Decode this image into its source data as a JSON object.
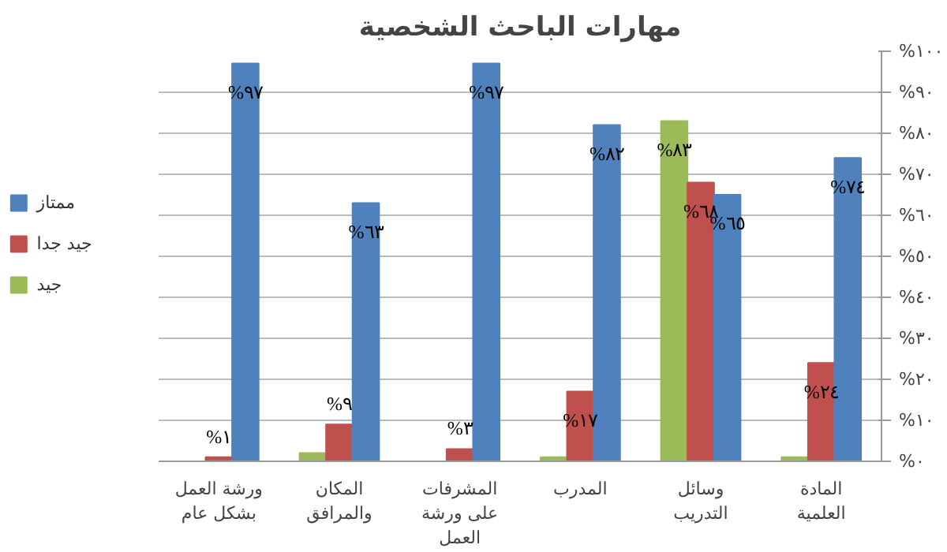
{
  "chart_data": {
    "type": "bar",
    "title": "مهارات الباحث الشخصية",
    "categories": [
      "ورشة العمل بشكل عام",
      "المكان والمرافق",
      "المشرفات على ورشة العمل",
      "المدرب",
      "وسائل التدريب",
      "المادة العلمية"
    ],
    "series": [
      {
        "name": "جيد",
        "color": "#9bbb59",
        "values": [
          0,
          2,
          0,
          1,
          83,
          1
        ],
        "value_labels": [
          null,
          null,
          null,
          null,
          "%٨٣",
          null
        ]
      },
      {
        "name": "جيد جدا",
        "color": "#c0504d",
        "values": [
          1,
          9,
          3,
          17,
          68,
          24
        ],
        "value_labels": [
          "%١",
          "%٩",
          "%٣",
          "%١٧",
          "%٦٨",
          "%٢٤"
        ]
      },
      {
        "name": "ممتاز",
        "color": "#4f81bd",
        "values": [
          97,
          63,
          97,
          82,
          65,
          74
        ],
        "value_labels": [
          "%٩٧",
          "%٦٣",
          "%٩٧",
          "%٨٢",
          "%٦٥",
          "%٧٤"
        ]
      }
    ],
    "ylim": [
      0,
      100
    ],
    "yticks": [
      {
        "value": 0,
        "label": "%٠"
      },
      {
        "value": 10,
        "label": "%١٠"
      },
      {
        "value": 20,
        "label": "%٢٠"
      },
      {
        "value": 30,
        "label": "%٣٠"
      },
      {
        "value": 40,
        "label": "%٤٠"
      },
      {
        "value": 50,
        "label": "%٥٠"
      },
      {
        "value": 60,
        "label": "%٦٠"
      },
      {
        "value": 70,
        "label": "%٧٠"
      },
      {
        "value": 80,
        "label": "%٨٠"
      },
      {
        "value": 90,
        "label": "%٩٠"
      },
      {
        "value": 100,
        "label": "%١٠٠"
      }
    ],
    "grid": "y",
    "legend": "left"
  }
}
